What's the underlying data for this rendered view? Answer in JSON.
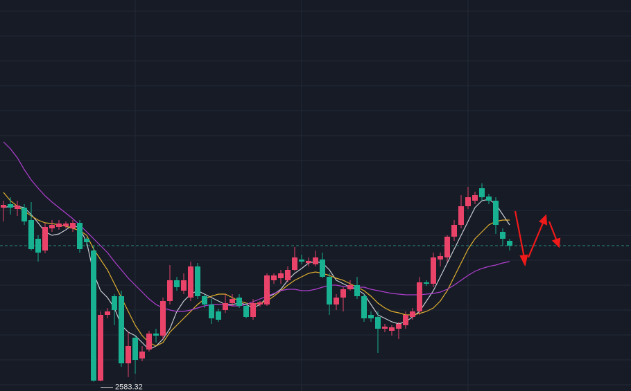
{
  "chart_data": {
    "type": "candlestick",
    "ylim": [
      2570,
      3135
    ],
    "up_color": "#e9436a",
    "down_color": "#18b292",
    "open": [
      2835,
      2840,
      2833,
      2835,
      2817,
      2790,
      2773,
      2805,
      2807,
      2808,
      2805,
      2813,
      2790,
      2773,
      2585,
      2680,
      2707,
      2707,
      2610,
      2647,
      2617,
      2630,
      2653,
      2650,
      2700,
      2730,
      2715,
      2705,
      2750,
      2707,
      2695,
      2685,
      2687,
      2697,
      2705,
      2693,
      2677,
      2695,
      2695,
      2730,
      2733,
      2730,
      2745,
      2760,
      2755,
      2753,
      2760,
      2735,
      2695,
      2705,
      2717,
      2723,
      2707,
      2680,
      2677,
      2660,
      2657,
      2660,
      2665,
      2677,
      2685,
      2727,
      2725,
      2760,
      2763,
      2793,
      2810,
      2837,
      2845,
      2863,
      2851,
      2845,
      2800,
      2787
    ],
    "high": [
      2845,
      2850,
      2845,
      2840,
      2843,
      2795,
      2813,
      2817,
      2817,
      2815,
      2817,
      2817,
      2792,
      2780,
      2685,
      2690,
      2710,
      2715,
      2655,
      2650,
      2635,
      2657,
      2660,
      2705,
      2752,
      2735,
      2740,
      2757,
      2755,
      2710,
      2703,
      2689,
      2710,
      2710,
      2710,
      2697,
      2703,
      2700,
      2740,
      2740,
      2745,
      2750,
      2778,
      2767,
      2763,
      2773,
      2770,
      2740,
      2710,
      2720,
      2730,
      2735,
      2710,
      2685,
      2685,
      2667,
      2665,
      2670,
      2685,
      2690,
      2735,
      2730,
      2770,
      2770,
      2795,
      2817,
      2853,
      2865,
      2858,
      2870,
      2855,
      2850,
      2805,
      2790
    ],
    "low": [
      2815,
      2825,
      2823,
      2810,
      2773,
      2757,
      2769,
      2800,
      2803,
      2805,
      2800,
      2770,
      2780,
      2583.32,
      2584,
      2675,
      2665,
      2605,
      2590,
      2595,
      2613,
      2627,
      2640,
      2645,
      2695,
      2715,
      2710,
      2700,
      2703,
      2690,
      2667,
      2670,
      2683,
      2693,
      2690,
      2675,
      2673,
      2692,
      2693,
      2725,
      2725,
      2727,
      2743,
      2753,
      2750,
      2750,
      2733,
      2680,
      2687,
      2685,
      2715,
      2703,
      2670,
      2670,
      2625,
      2655,
      2650,
      2645,
      2660,
      2673,
      2680,
      2722,
      2720,
      2750,
      2757,
      2787,
      2805,
      2833,
      2840,
      2845,
      2840,
      2797,
      2780,
      2773
    ],
    "close": [
      2839,
      2835,
      2838,
      2815,
      2775,
      2770,
      2807,
      2810,
      2812,
      2812,
      2813,
      2775,
      2785,
      2585,
      2680,
      2685,
      2687,
      2610,
      2635,
      2615,
      2627,
      2653,
      2650,
      2700,
      2730,
      2720,
      2730,
      2750,
      2707,
      2695,
      2675,
      2673,
      2697,
      2703,
      2693,
      2677,
      2697,
      2698,
      2737,
      2737,
      2740,
      2745,
      2763,
      2757,
      2758,
      2763,
      2735,
      2695,
      2705,
      2717,
      2723,
      2707,
      2675,
      2675,
      2660,
      2663,
      2662,
      2667,
      2680,
      2685,
      2727,
      2725,
      2763,
      2765,
      2793,
      2810,
      2837,
      2850,
      2853,
      2850,
      2845,
      2810,
      2790,
      2780
    ],
    "low_labels": [
      null,
      null,
      null,
      null,
      null,
      null,
      null,
      null,
      null,
      null,
      null,
      null,
      null,
      "2583.32",
      null,
      null,
      null,
      null,
      null,
      null,
      null,
      null,
      null,
      null,
      null,
      null,
      null,
      null,
      null,
      null,
      null,
      null,
      null,
      null,
      null,
      null,
      null,
      null,
      null,
      null,
      null,
      null,
      null,
      null,
      null,
      null,
      null,
      null,
      null,
      null,
      null,
      null,
      null,
      null,
      null,
      null,
      null,
      null,
      null,
      null,
      null,
      null,
      null,
      null,
      null,
      null,
      null,
      null,
      null,
      null,
      null,
      null,
      null,
      null
    ],
    "price_line": 2780,
    "price_line_color": "#2a8a7e",
    "series": [
      {
        "color": "#c9ccd3",
        "values": [
          2835,
          2837,
          2837,
          2835,
          2825,
          2813,
          2800,
          2795,
          2797,
          2803,
          2810,
          2805,
          2785,
          2740,
          2715,
          2705,
          2690,
          2665,
          2655,
          2650,
          2640,
          2630,
          2635,
          2645,
          2660,
          2685,
          2700,
          2710,
          2715,
          2710,
          2705,
          2700,
          2695,
          2695,
          2697,
          2695,
          2690,
          2695,
          2705,
          2710,
          2717,
          2730,
          2740,
          2747,
          2755,
          2757,
          2755,
          2745,
          2730,
          2725,
          2720,
          2717,
          2710,
          2695,
          2680,
          2675,
          2670,
          2667,
          2670,
          2677,
          2685,
          2700,
          2715,
          2735,
          2755,
          2775,
          2795,
          2815,
          2835,
          2845,
          2847,
          2840,
          2825,
          2810
        ]
      },
      {
        "color": "#e2b02f",
        "values": [
          2857,
          2845,
          2837,
          2830,
          2823,
          2817,
          2813,
          2812,
          2810,
          2808,
          2805,
          2802,
          2795,
          2775,
          2760,
          2745,
          2725,
          2705,
          2685,
          2665,
          2650,
          2640,
          2635,
          2640,
          2655,
          2665,
          2675,
          2685,
          2695,
          2703,
          2707,
          2710,
          2710,
          2705,
          2700,
          2697,
          2695,
          2697,
          2700,
          2707,
          2715,
          2723,
          2730,
          2735,
          2740,
          2742,
          2740,
          2737,
          2733,
          2730,
          2725,
          2720,
          2715,
          2707,
          2697,
          2690,
          2685,
          2683,
          2680,
          2680,
          2682,
          2685,
          2690,
          2700,
          2715,
          2735,
          2755,
          2775,
          2790,
          2800,
          2810,
          2815,
          2817,
          2817
        ]
      },
      {
        "color": "#b13fd0",
        "values": [
          2930,
          2920,
          2907,
          2890,
          2875,
          2863,
          2852,
          2843,
          2835,
          2827,
          2819,
          2810,
          2800,
          2790,
          2780,
          2770,
          2757,
          2745,
          2733,
          2723,
          2713,
          2703,
          2695,
          2690,
          2687,
          2685,
          2685,
          2687,
          2690,
          2693,
          2695,
          2695,
          2695,
          2693,
          2693,
          2695,
          2699,
          2703,
          2707,
          2711,
          2715,
          2717,
          2717,
          2715,
          2715,
          2717,
          2720,
          2723,
          2723,
          2721,
          2720,
          2720,
          2720,
          2717,
          2715,
          2713,
          2711,
          2710,
          2709,
          2709,
          2709,
          2710,
          2711,
          2713,
          2717,
          2723,
          2730,
          2737,
          2743,
          2747,
          2750,
          2752,
          2755,
          2757
        ]
      }
    ]
  }
}
